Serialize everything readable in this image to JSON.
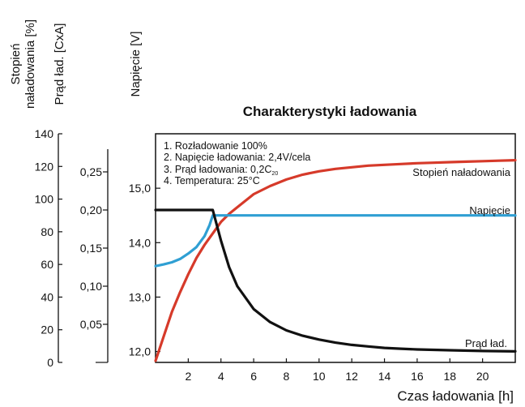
{
  "chart_data": {
    "type": "line",
    "title": "Charakterystyki ładowania",
    "xlabel": "Czas ładowania [h]",
    "xlim": [
      0,
      22
    ],
    "xticks": [
      "2",
      "4",
      "6",
      "8",
      "10",
      "12",
      "14",
      "16",
      "18",
      "20"
    ],
    "axes": {
      "charge": {
        "label_line1": "Stopień",
        "label_line2": "naładowania [%]",
        "range": [
          0,
          140
        ],
        "ticks": [
          "0",
          "20",
          "40",
          "60",
          "80",
          "100",
          "120",
          "140"
        ]
      },
      "current": {
        "label": "Prąd ład.  [CxA]",
        "range": [
          0,
          0.3
        ],
        "ticks": [
          "0,05",
          "0,10",
          "0,15",
          "0,20",
          "0,25"
        ]
      },
      "voltage": {
        "label": "Napięcie  [V]",
        "range": [
          11.8,
          16.0
        ],
        "ticks": [
          "12,0",
          "13,0",
          "14,0",
          "15,0"
        ]
      }
    },
    "notes": {
      "n1": "1. Rozładowanie 100%",
      "n2": "2. Napięcie ładowania: 2,4V/cela",
      "n3a": "3. Prąd ładowania: 0,2C",
      "n3sub": "20",
      "n4": "4. Temperatura: 25°C"
    },
    "series": [
      {
        "name": "Stopień naładowania",
        "axis": "charge",
        "color": "#d63a2a",
        "x": [
          0,
          0.5,
          1,
          1.5,
          2,
          2.5,
          3,
          3.5,
          4,
          4.5,
          5,
          6,
          7,
          8,
          9,
          10,
          11,
          12,
          13,
          14,
          15,
          16,
          17,
          18,
          19,
          20,
          21,
          22
        ],
        "y": [
          1,
          16,
          31,
          43,
          54,
          64,
          72,
          79,
          86,
          91,
          95,
          103,
          108,
          112,
          115,
          117,
          118.5,
          119.5,
          120.5,
          121,
          121.5,
          122,
          122.3,
          122.6,
          122.9,
          123.2,
          123.5,
          123.8
        ]
      },
      {
        "name": "Napięcie",
        "axis": "voltage",
        "color": "#2f9fd3",
        "x": [
          0,
          0.5,
          1,
          1.5,
          2,
          2.5,
          3,
          3.3,
          3.5,
          3.6,
          5,
          8,
          12,
          16,
          20,
          22
        ],
        "y": [
          13.57,
          13.6,
          13.64,
          13.7,
          13.8,
          13.92,
          14.12,
          14.32,
          14.5,
          14.5,
          14.5,
          14.5,
          14.5,
          14.5,
          14.5,
          14.5
        ]
      },
      {
        "name": "Prąd ład.",
        "axis": "current",
        "color": "#111111",
        "x": [
          0,
          1,
          2,
          3,
          3.5,
          4,
          4.5,
          5,
          6,
          7,
          8,
          9,
          10,
          11,
          12,
          13,
          14,
          15,
          16,
          18,
          20,
          22
        ],
        "y": [
          0.2,
          0.2,
          0.2,
          0.2,
          0.2,
          0.16,
          0.125,
          0.1,
          0.07,
          0.053,
          0.042,
          0.035,
          0.03,
          0.026,
          0.023,
          0.021,
          0.019,
          0.018,
          0.017,
          0.016,
          0.015,
          0.0145
        ]
      }
    ],
    "grid": false
  }
}
